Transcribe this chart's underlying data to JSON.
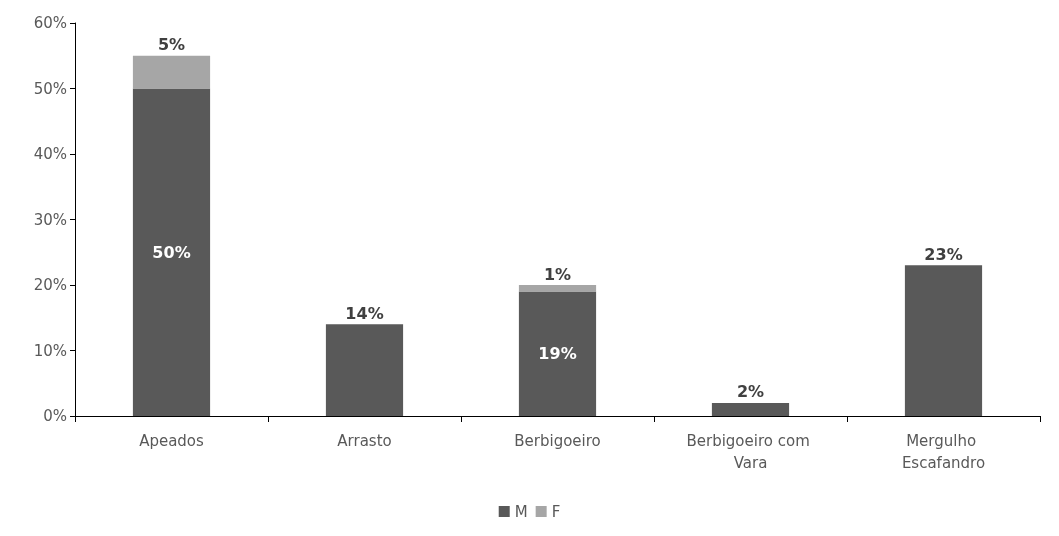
{
  "chart_data": {
    "type": "bar",
    "stacked": true,
    "categories": [
      "Apeados",
      "Arrasto",
      "Berbigoeiro",
      "Berbigoeiro com Vara",
      "Mergulho Escafandro"
    ],
    "series": [
      {
        "name": "M",
        "color": "#595959",
        "values": [
          50,
          14,
          19,
          2,
          23
        ],
        "value_labels": [
          "50%",
          "14%",
          "19%",
          "2%",
          "23%"
        ]
      },
      {
        "name": "F",
        "color": "#a6a6a6",
        "values": [
          5,
          null,
          1,
          null,
          null
        ],
        "value_labels": [
          "5%",
          null,
          "1%",
          null,
          null
        ]
      }
    ],
    "ylim": [
      0,
      60
    ],
    "yticks": [
      {
        "value": 0,
        "label": "0%"
      },
      {
        "value": 10,
        "label": "10%"
      },
      {
        "value": 20,
        "label": "20%"
      },
      {
        "value": 30,
        "label": "30%"
      },
      {
        "value": 40,
        "label": "40%"
      },
      {
        "value": 50,
        "label": "50%"
      },
      {
        "value": 60,
        "label": "60%"
      }
    ],
    "grid": false,
    "legend": "bottom"
  }
}
